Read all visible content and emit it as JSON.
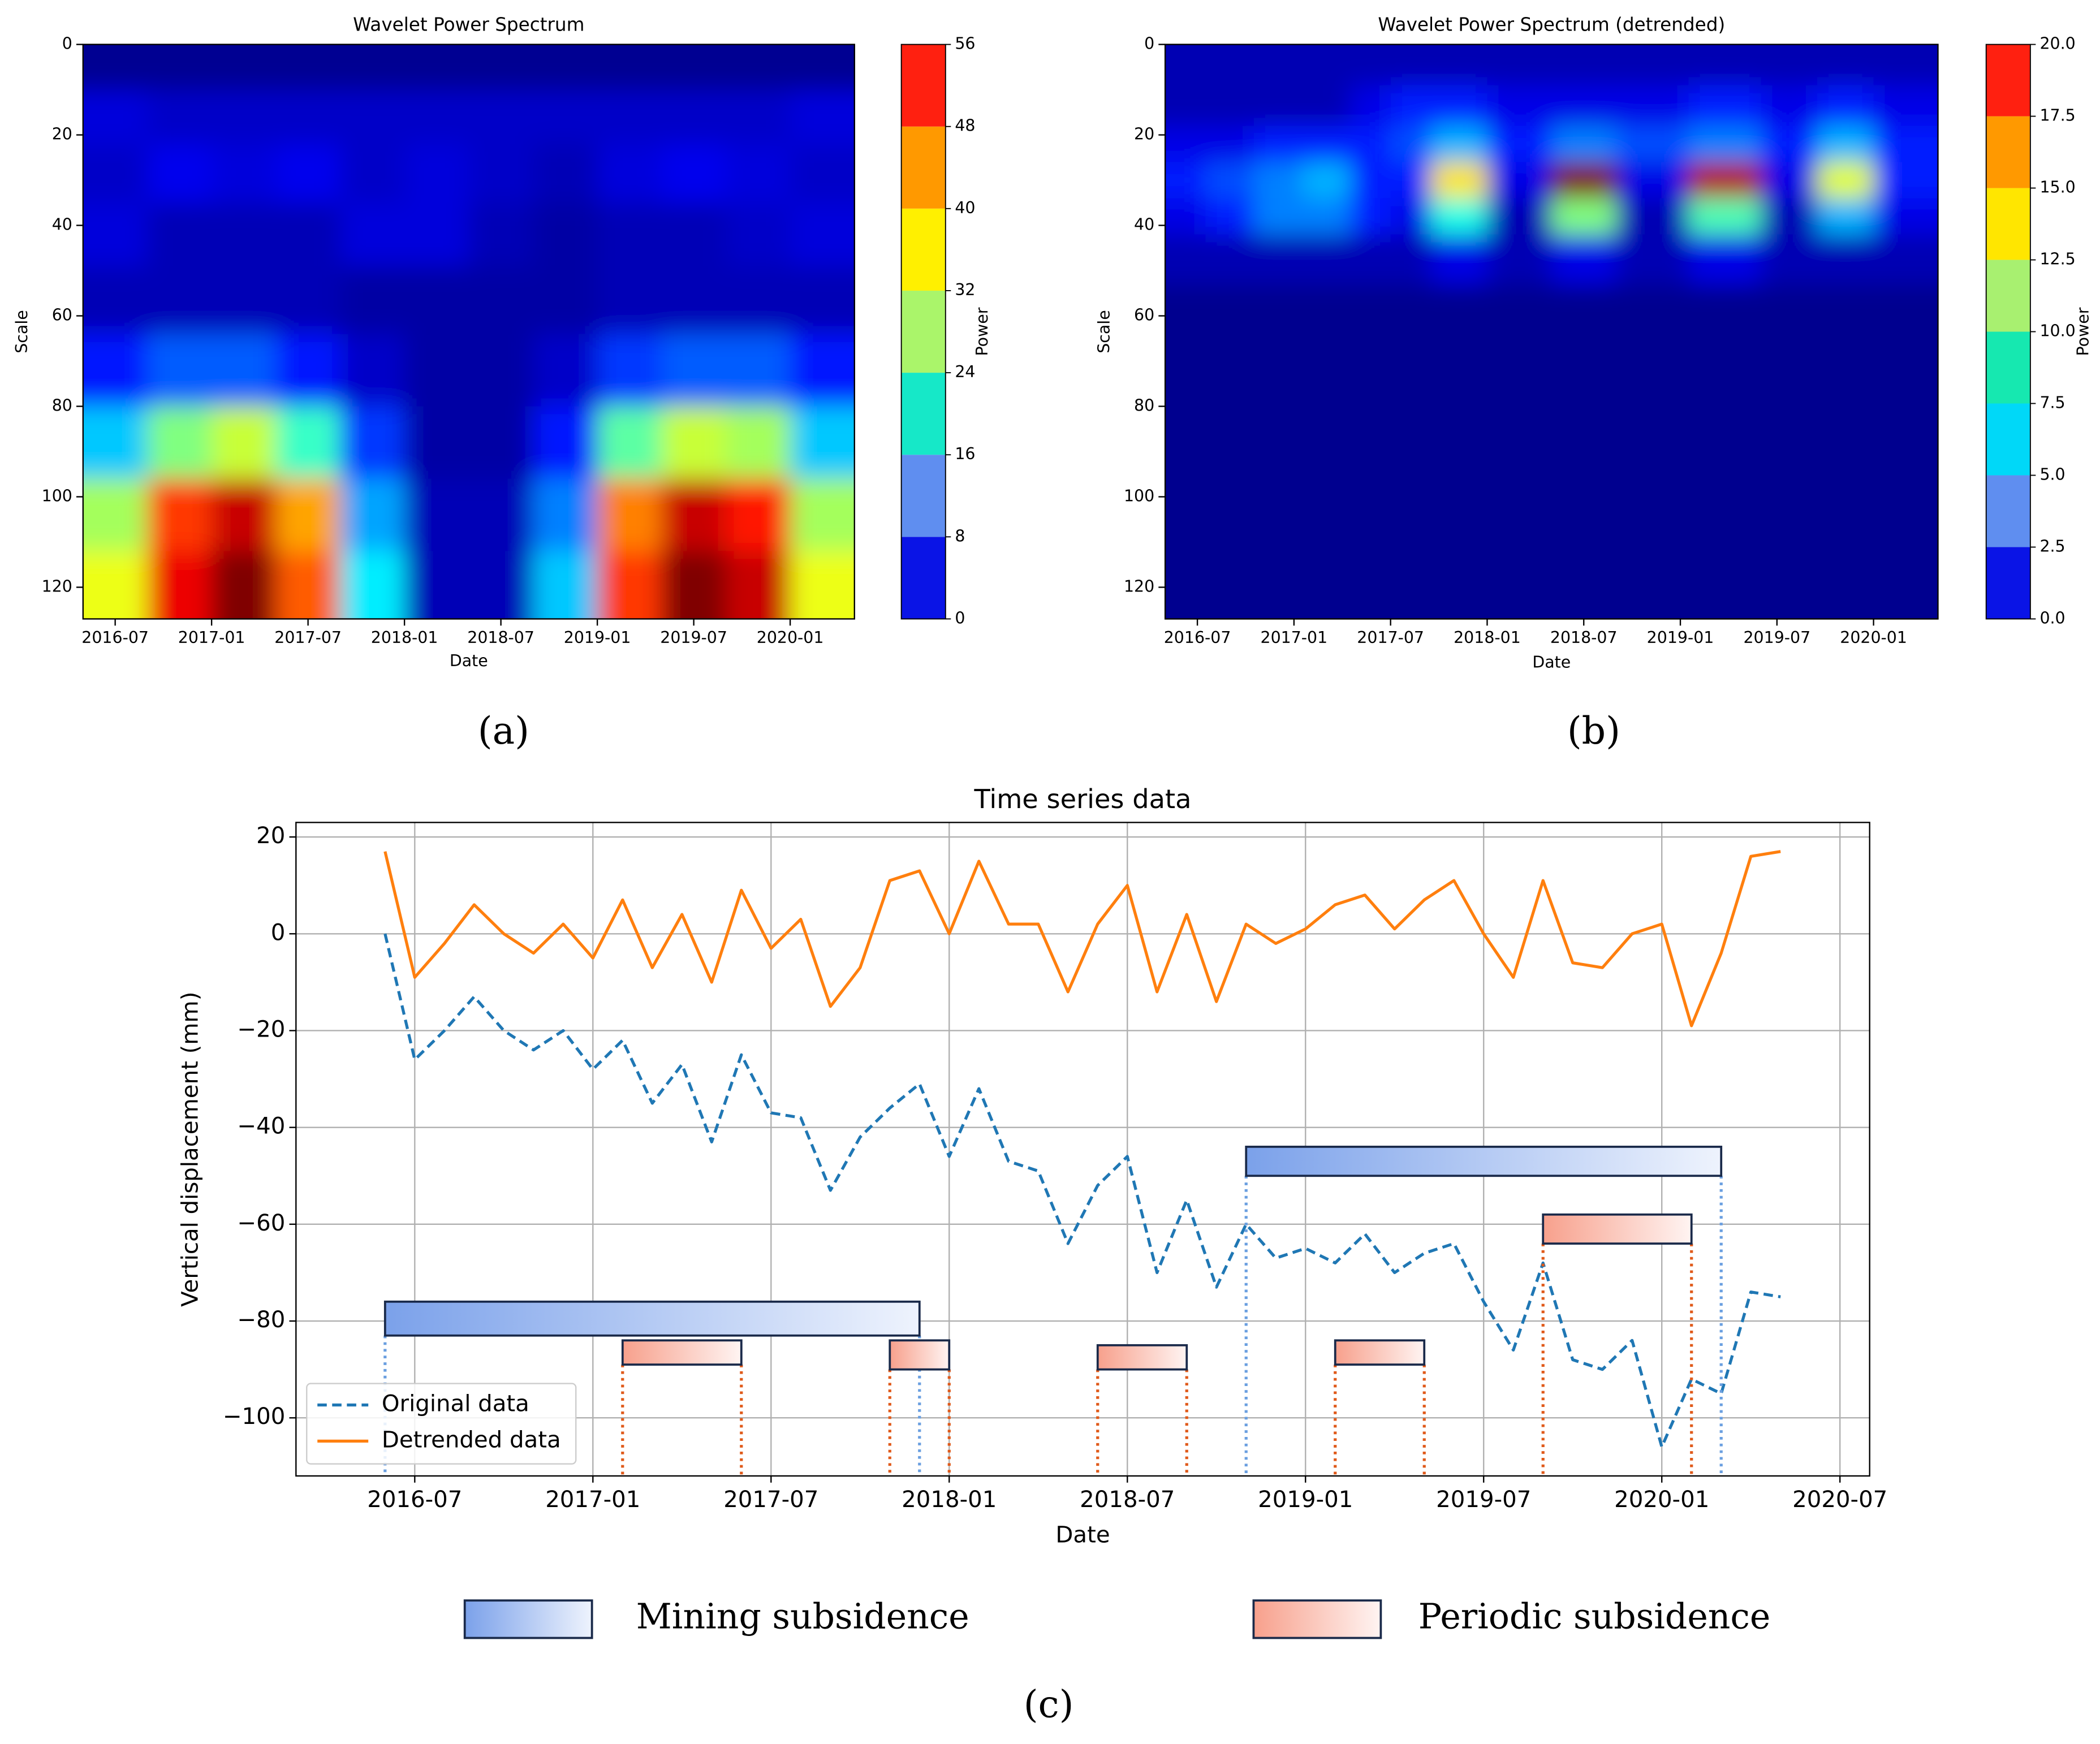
{
  "chart_data": [
    {
      "type": "heatmap",
      "label": "(a)",
      "title": "Wavelet Power Spectrum",
      "xlabel": "Date",
      "ylabel": "Scale",
      "colormap": "jet",
      "x": [
        "2016-07",
        "2016-11",
        "2017-03",
        "2017-07",
        "2017-11",
        "2018-03",
        "2018-07",
        "2018-11",
        "2019-03",
        "2019-07",
        "2019-11",
        "2020-03"
      ],
      "scales": [
        4,
        16,
        28,
        42,
        56,
        72,
        88,
        104,
        120
      ],
      "z": [
        [
          1,
          1,
          1,
          1,
          1,
          1,
          1,
          1,
          1,
          1,
          1,
          1
        ],
        [
          5,
          4,
          4,
          4,
          4,
          4,
          4,
          4,
          4,
          4,
          4,
          5
        ],
        [
          4,
          6,
          5,
          6,
          4,
          5,
          4,
          3,
          5,
          6,
          5,
          4
        ],
        [
          5,
          3,
          3,
          3,
          5,
          5,
          3,
          2,
          3,
          3,
          4,
          5
        ],
        [
          3,
          3,
          3,
          3,
          2,
          2,
          2,
          2,
          3,
          3,
          3,
          3
        ],
        [
          8,
          12,
          12,
          8,
          4,
          2,
          2,
          4,
          10,
          12,
          12,
          8
        ],
        [
          18,
          28,
          32,
          24,
          10,
          2,
          2,
          8,
          26,
          32,
          30,
          18
        ],
        [
          30,
          46,
          52,
          40,
          16,
          3,
          3,
          14,
          42,
          52,
          48,
          30
        ],
        [
          34,
          50,
          56,
          44,
          20,
          3,
          3,
          18,
          46,
          56,
          52,
          34
        ]
      ],
      "xlim": [
        "2016-05",
        "2020-05"
      ],
      "xticks": [
        "2016-07",
        "2017-01",
        "2017-07",
        "2018-01",
        "2018-07",
        "2019-01",
        "2019-07",
        "2020-01"
      ],
      "ylim": [
        127,
        0
      ],
      "yticks": [
        0,
        20,
        40,
        60,
        80,
        100,
        120
      ],
      "colorbar": {
        "label": "Power",
        "ticks": [
          0,
          8,
          16,
          24,
          32,
          40,
          48,
          56
        ],
        "colors": [
          "#0a14e6",
          "#5f8ef0",
          "#16e8c8",
          "#aaf56a",
          "#fff000",
          "#ff9900",
          "#ff2010"
        ]
      }
    },
    {
      "type": "heatmap",
      "label": "(b)",
      "title": "Wavelet Power Spectrum (detrended)",
      "xlabel": "Date",
      "ylabel": "Scale",
      "colormap": "jet",
      "x": [
        "2016-06",
        "2016-09",
        "2016-12",
        "2017-03",
        "2017-06",
        "2017-08",
        "2017-11",
        "2018-03",
        "2018-07",
        "2018-11",
        "2019-04",
        "2019-08",
        "2019-11",
        "2020-03"
      ],
      "scales": [
        4,
        14,
        22,
        30,
        38,
        46,
        60,
        90,
        120
      ],
      "z": [
        [
          1,
          1,
          1,
          1,
          1,
          1,
          1,
          1,
          1,
          1,
          1,
          1,
          1,
          1
        ],
        [
          1,
          1,
          1,
          1,
          2,
          3,
          3,
          2,
          2,
          2,
          3,
          2,
          3,
          2
        ],
        [
          2,
          2,
          3,
          3,
          3,
          4,
          6,
          3,
          5,
          4,
          5,
          3,
          6,
          3
        ],
        [
          3,
          4,
          5,
          6,
          3,
          3,
          13,
          2,
          20,
          2,
          19,
          2,
          12,
          3
        ],
        [
          2,
          3,
          5,
          5,
          3,
          2,
          8,
          1,
          10,
          1,
          9,
          1,
          6,
          2
        ],
        [
          1,
          1,
          1,
          1,
          1,
          1,
          2,
          1,
          2,
          1,
          2,
          1,
          1,
          1
        ],
        [
          0.3,
          0.3,
          0.3,
          0.3,
          0.3,
          0.3,
          0.3,
          0.3,
          0.3,
          0.3,
          0.3,
          0.3,
          0.3,
          0.3
        ],
        [
          0.3,
          0.3,
          0.3,
          0.3,
          0.3,
          0.3,
          0.3,
          0.3,
          0.3,
          0.3,
          0.3,
          0.3,
          0.3,
          0.3
        ],
        [
          0.3,
          0.3,
          0.3,
          0.3,
          0.3,
          0.3,
          0.3,
          0.3,
          0.3,
          0.3,
          0.3,
          0.3,
          0.3,
          0.3
        ]
      ],
      "xlim": [
        "2016-05",
        "2020-05"
      ],
      "xticks": [
        "2016-07",
        "2017-01",
        "2017-07",
        "2018-01",
        "2018-07",
        "2019-01",
        "2019-07",
        "2020-01"
      ],
      "ylim": [
        127,
        0
      ],
      "yticks": [
        0,
        20,
        40,
        60,
        80,
        100,
        120
      ],
      "colorbar": {
        "label": "Power",
        "ticks": [
          {
            "value": 0,
            "label": "0.0"
          },
          2.5,
          {
            "value": 5,
            "label": "5.0"
          },
          7.5,
          {
            "value": 10,
            "label": "10.0"
          },
          12.5,
          {
            "value": 15,
            "label": "15.0"
          },
          17.5,
          {
            "value": 20,
            "label": "20.0"
          }
        ],
        "colors": [
          "#0a14e6",
          "#5f8ef0",
          "#00d8f8",
          "#16e8b0",
          "#a8f070",
          "#ffe600",
          "#ff9900",
          "#ff2010"
        ]
      }
    },
    {
      "type": "line",
      "label": "(c)",
      "title": "Time series data",
      "xlabel": "Date",
      "ylabel": "Vertical displacement (mm)",
      "grid": true,
      "legend": "lower left",
      "x": [
        "2016-06",
        "2016-07",
        "2016-08",
        "2016-09",
        "2016-10",
        "2016-11",
        "2016-12",
        "2017-01",
        "2017-02",
        "2017-03",
        "2017-04",
        "2017-05",
        "2017-06",
        "2017-07",
        "2017-08",
        "2017-09",
        "2017-10",
        "2017-11",
        "2017-12",
        "2018-01",
        "2018-02",
        "2018-03",
        "2018-04",
        "2018-05",
        "2018-06",
        "2018-07",
        "2018-08",
        "2018-09",
        "2018-10",
        "2018-11",
        "2018-12",
        "2019-01",
        "2019-02",
        "2019-03",
        "2019-04",
        "2019-05",
        "2019-06",
        "2019-07",
        "2019-08",
        "2019-09",
        "2019-10",
        "2019-11",
        "2019-12",
        "2020-01",
        "2020-02",
        "2020-03",
        "2020-04",
        "2020-05"
      ],
      "series": [
        {
          "name": "Original data",
          "color": "#1f77b4",
          "dashed": true,
          "values": [
            0,
            -26,
            -20,
            -13,
            -20,
            -24,
            -20,
            -28,
            -22,
            -35,
            -27,
            -43,
            -25,
            -37,
            -38,
            -53,
            -42,
            -36,
            -31,
            -46,
            -32,
            -47,
            -49,
            -64,
            -52,
            -46,
            -70,
            -55,
            -73,
            -60,
            -67,
            -65,
            -68,
            -62,
            -70,
            -66,
            -64,
            -76,
            -86,
            -68,
            -88,
            -90,
            -84,
            -106,
            -92,
            -95,
            -74,
            -75
          ]
        },
        {
          "name": "Detrended data",
          "color": "#ff7f0e",
          "dashed": false,
          "values": [
            17,
            -9,
            -2,
            6,
            0,
            -4,
            2,
            -5,
            7,
            -7,
            4,
            -10,
            9,
            -3,
            3,
            -15,
            -7,
            11,
            13,
            0,
            15,
            2,
            2,
            -12,
            2,
            10,
            -12,
            4,
            -14,
            2,
            -2,
            1,
            6,
            8,
            1,
            7,
            11,
            0,
            -9,
            11,
            -6,
            -7,
            0,
            2,
            -19,
            -4,
            16,
            17
          ]
        }
      ],
      "xlim": [
        "2016-03",
        "2020-08"
      ],
      "xticks": [
        "2016-07",
        "2017-01",
        "2017-07",
        "2018-01",
        "2018-07",
        "2019-01",
        "2019-07",
        "2020-01",
        "2020-07"
      ],
      "ylim": [
        -112,
        23
      ],
      "yticks": [
        20,
        0,
        {
          "value": -20,
          "label": "−20"
        },
        {
          "value": -40,
          "label": "−40"
        },
        {
          "value": -60,
          "label": "−60"
        },
        {
          "value": -80,
          "label": "−80"
        },
        {
          "value": -100,
          "label": "−100"
        }
      ],
      "span_groups": [
        {
          "name": "Mining subsidence",
          "colors": [
            "#7ba1ea",
            "#eef3fd"
          ],
          "line_color": "#6a9fe0",
          "spans": [
            {
              "start": "2016-06",
              "end": "2017-12",
              "top": -76,
              "bottom": -83
            },
            {
              "start": "2018-11",
              "end": "2020-03",
              "top": -44,
              "bottom": -50
            }
          ]
        },
        {
          "name": "Periodic subsidence",
          "colors": [
            "#f7a08c",
            "#fff4f2"
          ],
          "line_color": "#e05a1a",
          "spans": [
            {
              "start": "2017-02",
              "end": "2017-06",
              "top": -84,
              "bottom": -89
            },
            {
              "start": "2017-11",
              "end": "2018-01",
              "top": -84,
              "bottom": -90
            },
            {
              "start": "2018-06",
              "end": "2018-09",
              "top": -85,
              "bottom": -90
            },
            {
              "start": "2019-02",
              "end": "2019-05",
              "top": -84,
              "bottom": -89
            },
            {
              "start": "2019-09",
              "end": "2020-02",
              "top": -58,
              "bottom": -64
            }
          ]
        }
      ]
    }
  ]
}
